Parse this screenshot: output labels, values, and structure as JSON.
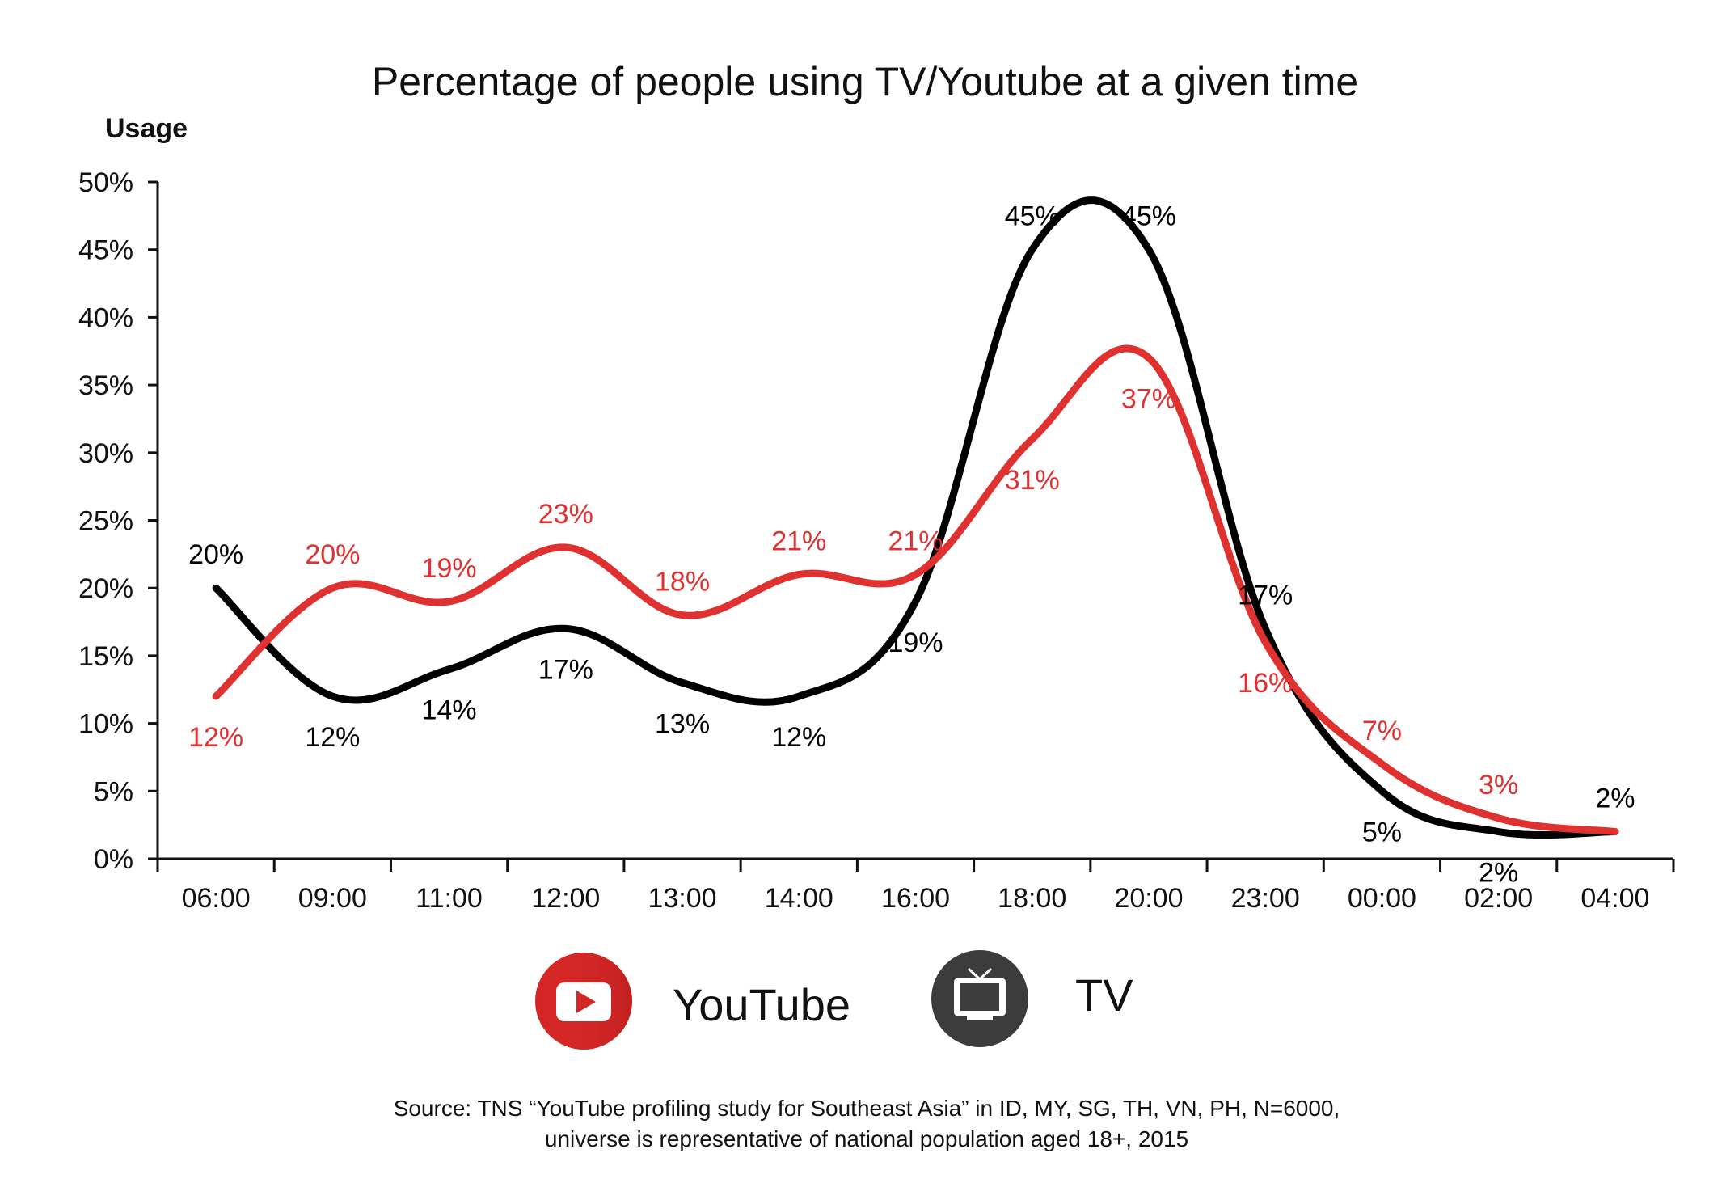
{
  "colors": {
    "youtube": "#e03131",
    "tv": "#000000",
    "tv_icon_bg": "#3c3c3c"
  },
  "chart_data": {
    "type": "line",
    "title": "Percentage of people using TV/Youtube at a given time",
    "ylabel": "Usage",
    "xlabel": "",
    "categories": [
      "06:00",
      "09:00",
      "11:00",
      "12:00",
      "13:00",
      "14:00",
      "16:00",
      "18:00",
      "20:00",
      "23:00",
      "00:00",
      "02:00",
      "04:00"
    ],
    "y_ticks": [
      "0%",
      "5%",
      "10%",
      "15%",
      "20%",
      "25%",
      "30%",
      "35%",
      "40%",
      "45%",
      "50%"
    ],
    "ylim": [
      0,
      50
    ],
    "series": [
      {
        "name": "YouTube",
        "color": "#e03131",
        "values": [
          12,
          20,
          19,
          23,
          18,
          21,
          21,
          31,
          37,
          16,
          7,
          3,
          2
        ],
        "labels": [
          "12%",
          "20%",
          "19%",
          "23%",
          "18%",
          "21%",
          "21%",
          "31%",
          "37%",
          "16%",
          "7%",
          "3%",
          ""
        ]
      },
      {
        "name": "TV",
        "color": "#000000",
        "values": [
          20,
          12,
          14,
          17,
          13,
          12,
          19,
          45,
          45,
          17,
          5,
          2,
          2
        ],
        "labels": [
          "20%",
          "12%",
          "14%",
          "17%",
          "13%",
          "12%",
          "19%",
          "45%",
          "45%",
          "17%",
          "5%",
          "2%",
          "2%"
        ]
      }
    ],
    "legend": "bottom-center",
    "grid": false
  },
  "legend": {
    "youtube_label": "YouTube",
    "tv_label": "TV"
  },
  "source": {
    "line1": "Source: TNS “YouTube profiling study for Southeast Asia” in ID, MY, SG, TH, VN, PH, N=6000,",
    "line2": "universe is representative of national population aged 18+, 2015"
  }
}
